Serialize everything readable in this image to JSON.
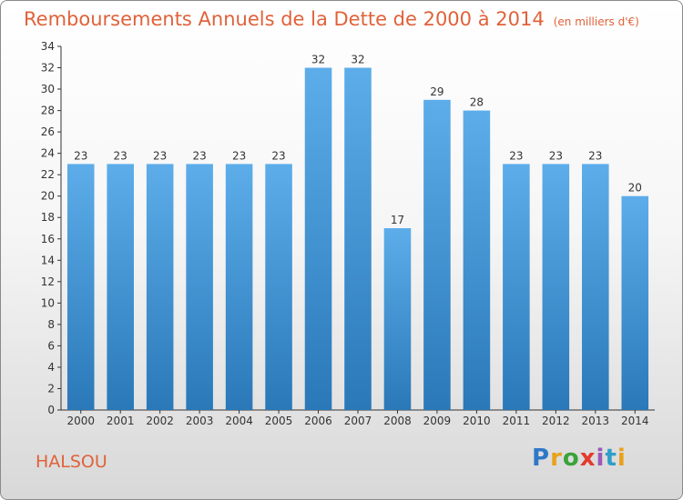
{
  "title": "Remboursements Annuels de la Dette de 2000 à 2014",
  "unit": "(en milliers d'€)",
  "commune": "HALSOU",
  "logo": {
    "letters": [
      "P",
      "r",
      "o",
      "x",
      "i",
      "t",
      "i"
    ],
    "colors": [
      "#2f78c8",
      "#e8a21b",
      "#3aa33a",
      "#e33b2e",
      "#9c58b8",
      "#2f9ec8",
      "#e8a21b"
    ]
  },
  "colors": {
    "bar_top": "#5dadea",
    "bar_bottom": "#2a78b8",
    "title": "#e0623a",
    "axis": "#333333"
  },
  "chart_data": {
    "type": "bar",
    "title": "Remboursements Annuels de la Dette de 2000 à 2014",
    "xlabel": "",
    "ylabel": "",
    "categories": [
      "2000",
      "2001",
      "2002",
      "2003",
      "2004",
      "2005",
      "2006",
      "2007",
      "2008",
      "2009",
      "2010",
      "2011",
      "2012",
      "2013",
      "2014"
    ],
    "values": [
      23,
      23,
      23,
      23,
      23,
      23,
      32,
      32,
      17,
      29,
      28,
      23,
      23,
      23,
      20
    ],
    "ylim": [
      0,
      34
    ],
    "yticks": [
      0,
      2,
      4,
      6,
      8,
      10,
      12,
      14,
      16,
      18,
      20,
      22,
      24,
      26,
      28,
      30,
      32,
      34
    ],
    "grid": false,
    "data_labels": true
  }
}
